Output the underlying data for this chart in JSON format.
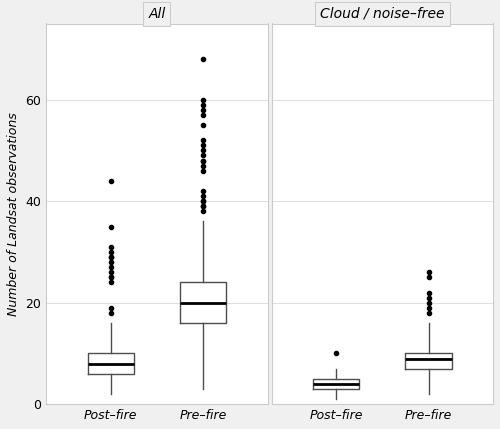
{
  "panels": [
    "All",
    "Cloud / noise–free"
  ],
  "categories": [
    "Post–fire",
    "Pre–fire"
  ],
  "ylabel": "Number of Landsat observations",
  "ylim": [
    0,
    75
  ],
  "yticks": [
    0,
    20,
    40,
    60
  ],
  "background_color": "#f0f0f0",
  "plot_bg": "#ffffff",
  "grid_color": "#e0e0e0",
  "box_color": "#4d4d4d",
  "all_post_fire": {
    "q1": 6,
    "median": 8,
    "q3": 10,
    "whislo": 2,
    "whishi": 16,
    "fliers": [
      18,
      19,
      24,
      25,
      25,
      26,
      27,
      28,
      29,
      29,
      30,
      31,
      35,
      44
    ]
  },
  "all_pre_fire": {
    "q1": 16,
    "median": 20,
    "q3": 24,
    "whislo": 3,
    "whishi": 36,
    "fliers": [
      38,
      39,
      39,
      40,
      40,
      41,
      42,
      46,
      47,
      48,
      48,
      49,
      50,
      51,
      52,
      55,
      57,
      58,
      59,
      60,
      68
    ]
  },
  "cloud_post_fire": {
    "q1": 3,
    "median": 4,
    "q3": 5,
    "whislo": 1,
    "whishi": 7,
    "fliers": [
      10
    ]
  },
  "cloud_pre_fire": {
    "q1": 7,
    "median": 9,
    "q3": 10,
    "whislo": 2,
    "whishi": 16,
    "fliers": [
      18,
      19,
      20,
      21,
      22,
      25,
      26
    ]
  }
}
